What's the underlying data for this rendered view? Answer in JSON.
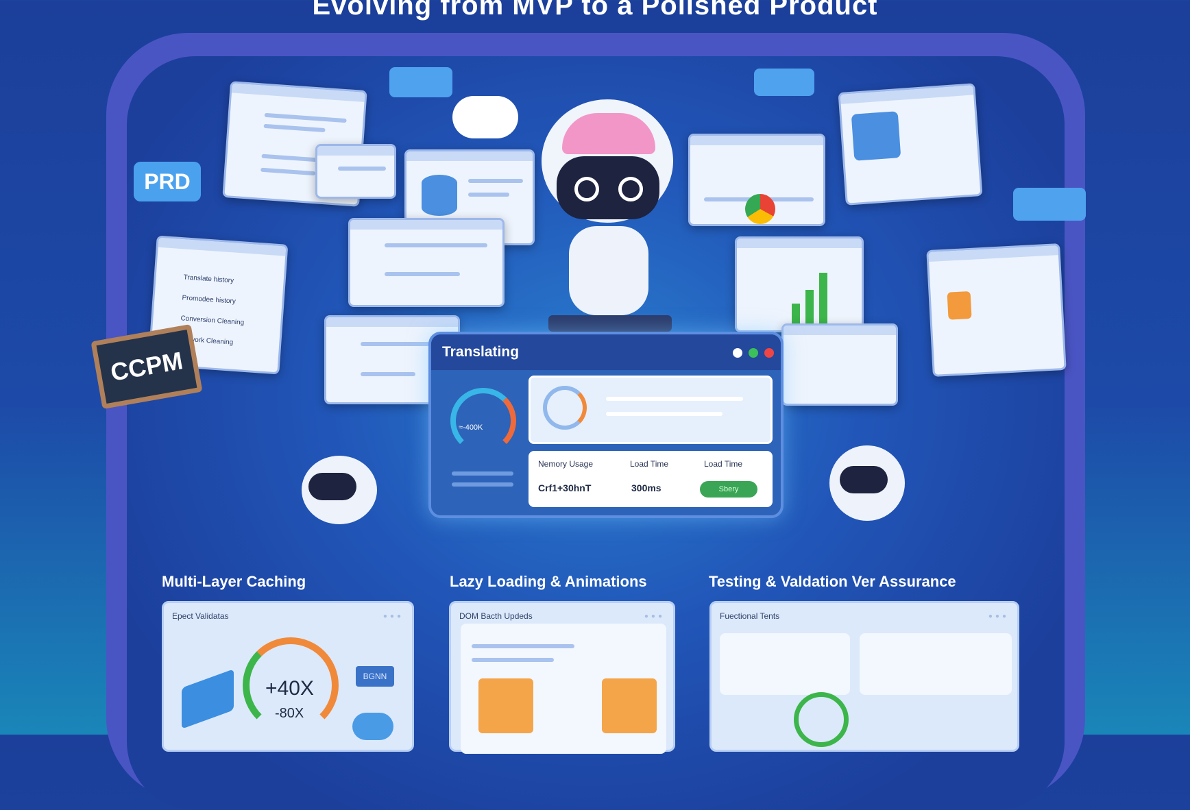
{
  "title": "Evolving from MVP to a Polished Product",
  "badges": {
    "prd": "PRD",
    "ccpm": "CCPM"
  },
  "left_window": {
    "items": [
      "Translate history",
      "Promodee history",
      "Conversion Cleaning",
      "Network Cleaning"
    ]
  },
  "translating_panel": {
    "title": "Translating",
    "gauge_label": "≈-400K",
    "stats": [
      {
        "label": "Nemory Usage",
        "value": "Crf1+30hnT"
      },
      {
        "label": "Load Time",
        "value": "300ms"
      },
      {
        "label": "Load Time",
        "button": "Sbery"
      }
    ],
    "window_controls": {
      "colors": [
        "#ffffff",
        "#3cc05a",
        "#ef4545"
      ]
    }
  },
  "sections": [
    {
      "heading": "Multi-Layer Caching",
      "card_title": "Epect Validatas",
      "gauge_top": "+40X",
      "gauge_bottom": "-80X",
      "chip": "BGNN"
    },
    {
      "heading": "Lazy Loading & Animations",
      "card_title": "DOM Bacth Updeds"
    },
    {
      "heading": "Testing & Valdation Ver Assurance",
      "card_title": "Fuectional Tents"
    }
  ],
  "colors": {
    "background": "#1d4aa8",
    "frame": "#4a55c4",
    "accent_orange": "#f08a3a",
    "accent_green": "#3aa655"
  }
}
